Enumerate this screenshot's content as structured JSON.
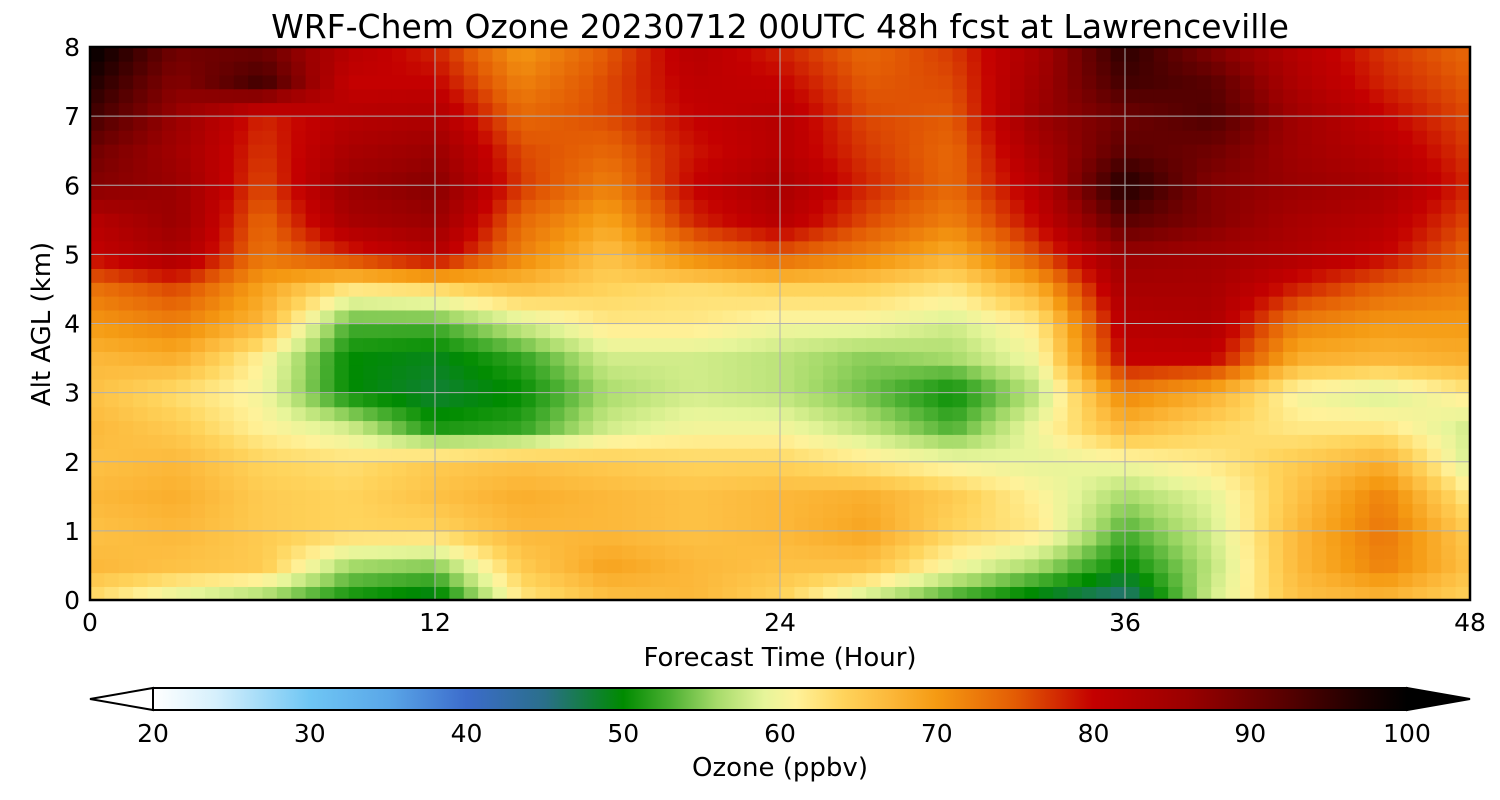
{
  "chart_data": {
    "type": "heatmap",
    "title": "WRF-Chem Ozone  20230712 00UTC 48h fcst at Lawrenceville",
    "xlabel": "Forecast Time (Hour)",
    "ylabel": "Alt AGL (km)",
    "xlim": [
      0,
      48
    ],
    "ylim": [
      0,
      8
    ],
    "x_ticks": [
      "0",
      "12",
      "24",
      "36",
      "48"
    ],
    "y_ticks": [
      "0",
      "1",
      "2",
      "3",
      "4",
      "5",
      "6",
      "7",
      "8"
    ],
    "grid": true,
    "colorbar": {
      "label": "Ozone  (ppbv)",
      "min": 20,
      "max": 100,
      "ticks": [
        "20",
        "30",
        "40",
        "50",
        "60",
        "70",
        "80",
        "90",
        "100"
      ],
      "extend": "both",
      "stops": [
        {
          "v": 20,
          "c": "#ffffff"
        },
        {
          "v": 24,
          "c": "#d6f0fc"
        },
        {
          "v": 30,
          "c": "#6fc6f4"
        },
        {
          "v": 35,
          "c": "#5aa7e8"
        },
        {
          "v": 40,
          "c": "#3c6ccc"
        },
        {
          "v": 45,
          "c": "#2a6f8a"
        },
        {
          "v": 50,
          "c": "#008b00"
        },
        {
          "v": 53,
          "c": "#4cb032"
        },
        {
          "v": 56,
          "c": "#a7db6b"
        },
        {
          "v": 59,
          "c": "#e6f59a"
        },
        {
          "v": 61,
          "c": "#fff29a"
        },
        {
          "v": 64,
          "c": "#ffd45c"
        },
        {
          "v": 67,
          "c": "#fcb83a"
        },
        {
          "v": 70,
          "c": "#f59a12"
        },
        {
          "v": 75,
          "c": "#e35c04"
        },
        {
          "v": 80,
          "c": "#c40000"
        },
        {
          "v": 86,
          "c": "#9a0000"
        },
        {
          "v": 92,
          "c": "#5a0000"
        },
        {
          "v": 97,
          "c": "#1e0000"
        },
        {
          "v": 100,
          "c": "#000000"
        }
      ]
    },
    "x": [
      0,
      3,
      6,
      9,
      12,
      15,
      18,
      21,
      24,
      27,
      30,
      33,
      36,
      39,
      42,
      45,
      48
    ],
    "y": [
      0,
      0.5,
      1,
      1.5,
      2,
      2.5,
      3,
      3.5,
      4,
      4.5,
      5,
      5.5,
      6,
      6.5,
      7,
      7.5,
      8
    ],
    "z": [
      [
        63,
        58,
        55,
        50,
        48,
        62,
        66,
        67,
        64,
        57,
        52,
        48,
        45,
        58,
        66,
        67,
        64
      ],
      [
        67,
        66,
        65,
        56,
        55,
        65,
        69,
        67,
        66,
        66,
        60,
        56,
        50,
        57,
        67,
        72,
        66
      ],
      [
        66,
        67,
        65,
        64,
        64,
        67,
        67,
        66,
        67,
        69,
        64,
        62,
        53,
        58,
        67,
        73,
        65
      ],
      [
        67,
        68,
        65,
        64,
        66,
        68,
        67,
        66,
        67,
        68,
        65,
        61,
        56,
        59,
        66,
        72,
        62
      ],
      [
        66,
        67,
        64,
        63,
        65,
        66,
        65,
        64,
        64,
        62,
        60,
        59,
        60,
        62,
        65,
        68,
        58
      ],
      [
        67,
        65,
        61,
        58,
        51,
        52,
        58,
        60,
        60,
        57,
        53,
        60,
        67,
        64,
        62,
        62,
        58
      ],
      [
        66,
        63,
        60,
        50,
        48,
        50,
        56,
        58,
        57,
        54,
        50,
        57,
        72,
        68,
        60,
        58,
        62
      ],
      [
        67,
        68,
        61,
        50,
        49,
        52,
        58,
        58,
        57,
        55,
        56,
        60,
        80,
        80,
        68,
        67,
        68
      ],
      [
        70,
        72,
        67,
        53,
        53,
        58,
        62,
        62,
        60,
        60,
        58,
        62,
        82,
        83,
        72,
        70,
        70
      ],
      [
        73,
        76,
        69,
        62,
        63,
        66,
        64,
        63,
        64,
        64,
        62,
        68,
        84,
        84,
        78,
        74,
        72
      ],
      [
        80,
        84,
        73,
        78,
        82,
        72,
        66,
        72,
        75,
        72,
        68,
        76,
        86,
        85,
        83,
        80,
        74
      ],
      [
        82,
        86,
        74,
        84,
        86,
        74,
        69,
        78,
        82,
        76,
        72,
        80,
        92,
        88,
        84,
        82,
        76
      ],
      [
        88,
        86,
        76,
        86,
        88,
        77,
        72,
        80,
        84,
        78,
        74,
        82,
        97,
        88,
        86,
        84,
        78
      ],
      [
        90,
        85,
        77,
        84,
        86,
        76,
        74,
        79,
        82,
        77,
        74,
        84,
        92,
        90,
        85,
        82,
        77
      ],
      [
        94,
        86,
        78,
        82,
        83,
        74,
        76,
        80,
        82,
        76,
        75,
        86,
        90,
        93,
        85,
        80,
        76
      ],
      [
        97,
        88,
        94,
        80,
        80,
        72,
        76,
        81,
        80,
        75,
        76,
        85,
        94,
        92,
        83,
        78,
        75
      ],
      [
        100,
        90,
        90,
        82,
        78,
        70,
        75,
        82,
        78,
        74,
        77,
        84,
        96,
        88,
        82,
        77,
        74
      ]
    ]
  }
}
